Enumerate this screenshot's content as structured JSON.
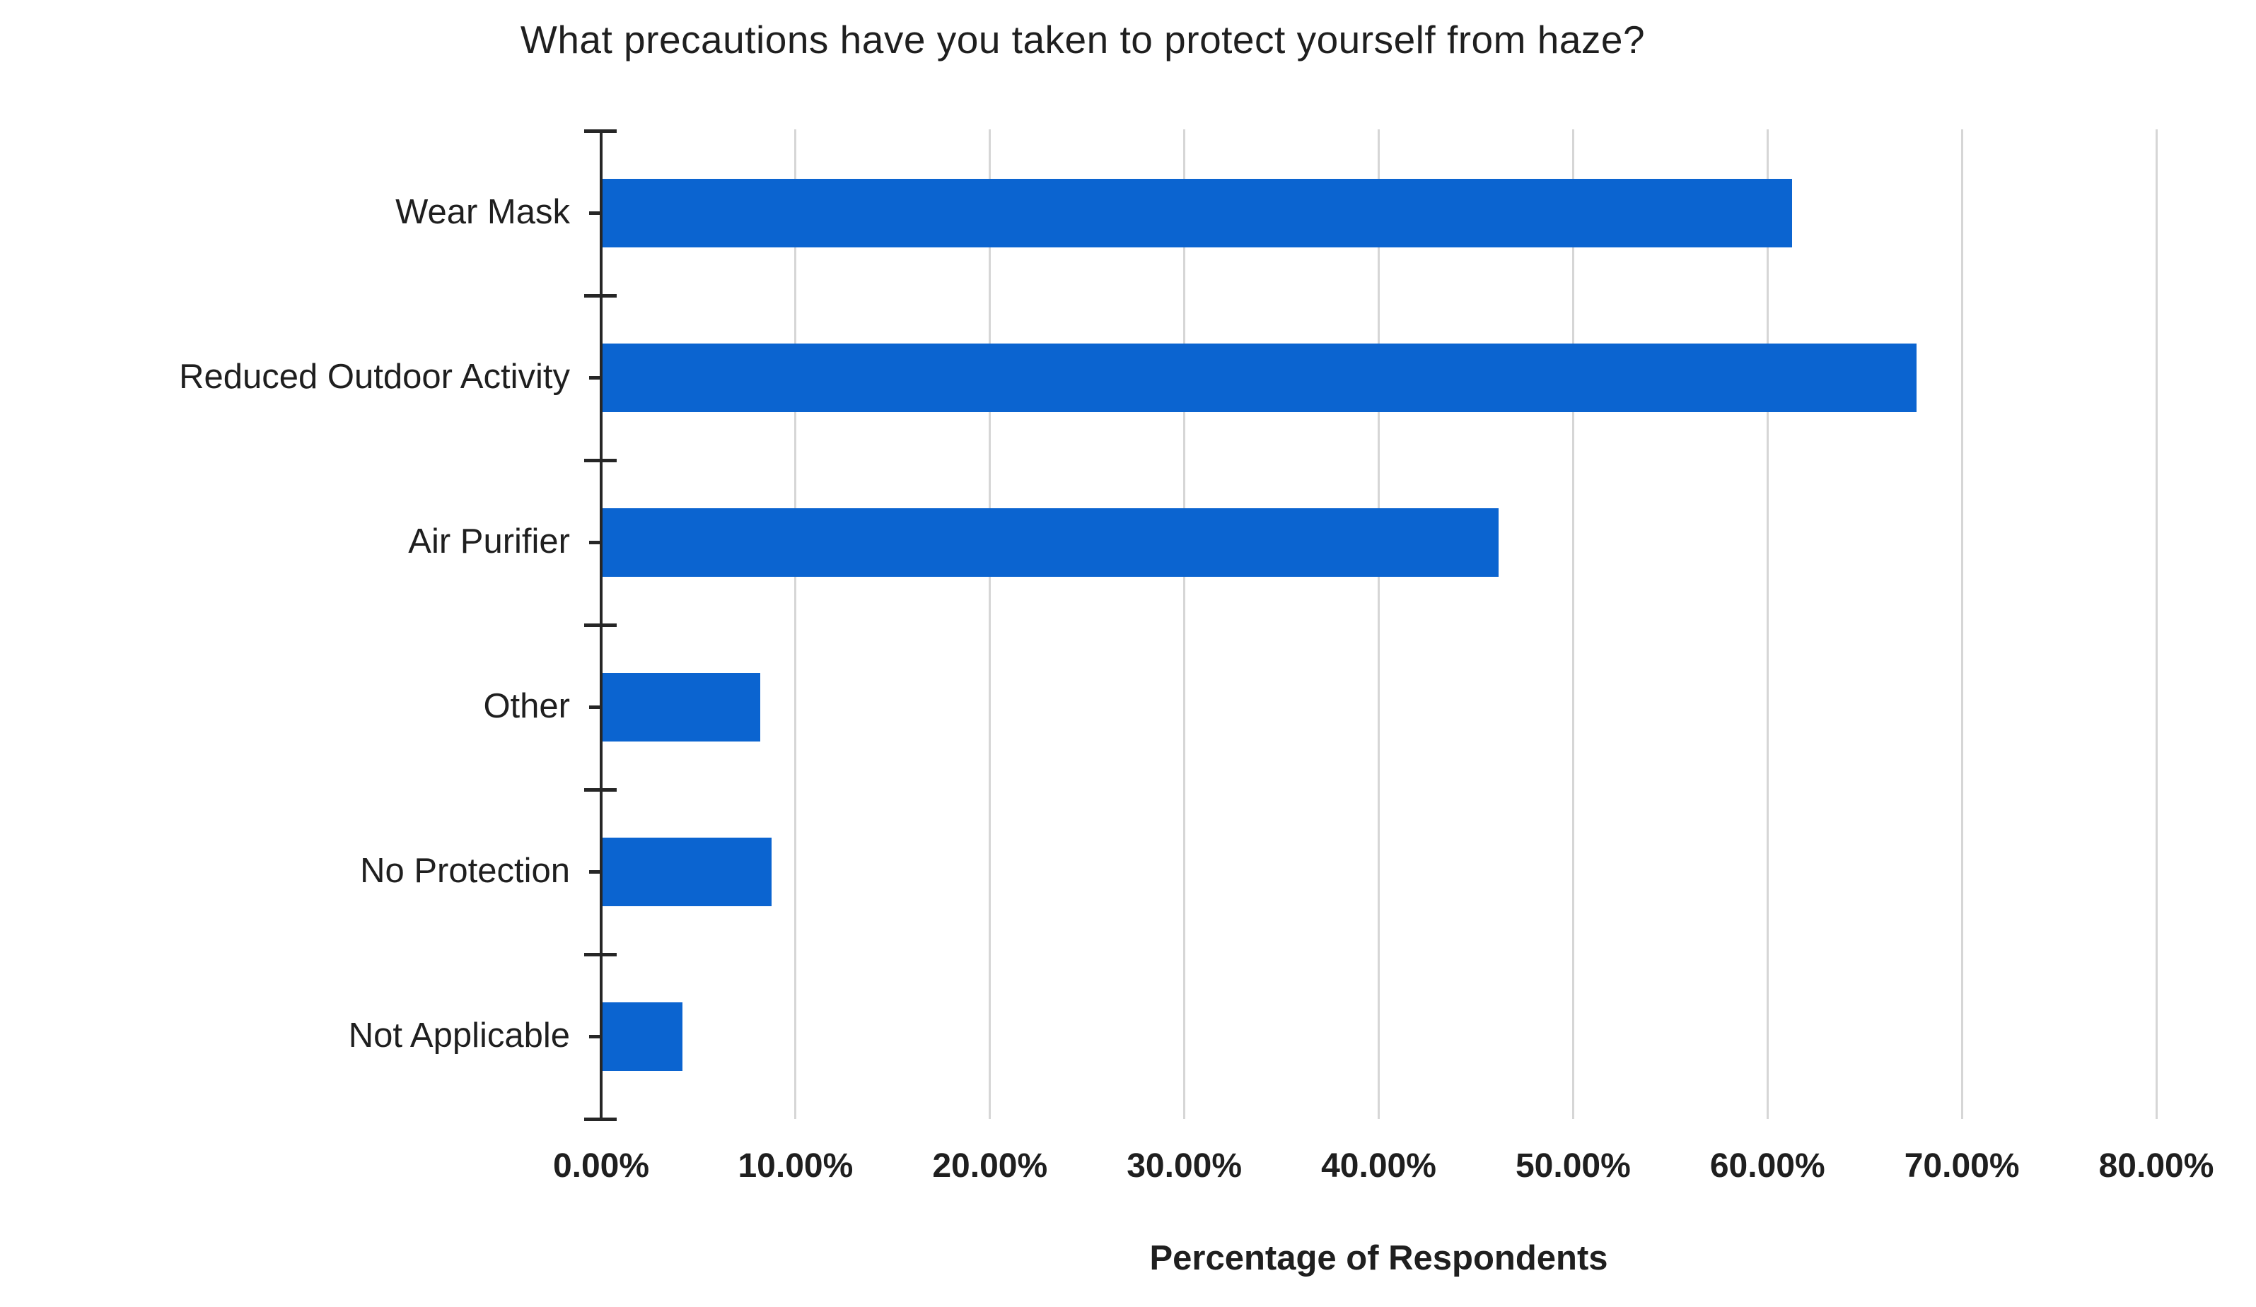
{
  "chart_data": {
    "type": "bar",
    "orientation": "horizontal",
    "title": "What precautions have you taken to protect yourself from haze?",
    "categories": [
      "Wear Mask",
      "Reduced Outdoor Activity",
      "Air Purifier",
      "Other",
      "No Protection",
      "Not Applicable"
    ],
    "values": [
      61.2,
      67.6,
      46.1,
      8.1,
      8.7,
      4.1
    ],
    "xlabel": "Percentage of Respondents",
    "x_tick_labels": [
      "0.00%",
      "10.00%",
      "20.00%",
      "30.00%",
      "40.00%",
      "50.00%",
      "60.00%",
      "70.00%",
      "80.00%"
    ],
    "xlim": [
      0,
      80
    ],
    "x_tick_step": 10,
    "grid": true,
    "legend": false,
    "bar_color": "#0b64d0",
    "gridline_color": "#d6d6d6",
    "axis_color": "#262626",
    "text_color": "#1f1f1f"
  }
}
